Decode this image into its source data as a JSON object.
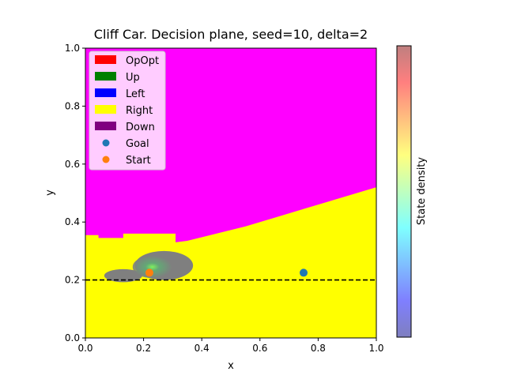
{
  "chart_data": {
    "type": "heatmap",
    "title": "Cliff Car. Decision plane, seed=10, delta=2",
    "xlabel": "x",
    "ylabel": "y",
    "xlim": [
      0.0,
      1.0
    ],
    "ylim": [
      0.0,
      1.0
    ],
    "xticks": [
      "0.0",
      "0.2",
      "0.4",
      "0.6",
      "0.8",
      "1.0"
    ],
    "yticks": [
      "0.0",
      "0.2",
      "0.4",
      "0.6",
      "0.8",
      "1.0"
    ],
    "grid": false,
    "legend_position": "top-left",
    "legend": [
      {
        "label": "OpOpt",
        "color": "#ff0000",
        "kind": "patch"
      },
      {
        "label": "Up",
        "color": "#008000",
        "kind": "patch"
      },
      {
        "label": "Left",
        "color": "#0000ff",
        "kind": "patch"
      },
      {
        "label": "Right",
        "color": "#ffff00",
        "kind": "patch"
      },
      {
        "label": "Down",
        "color": "#800080",
        "kind": "patch"
      },
      {
        "label": "Goal",
        "color": "#1f77b4",
        "kind": "marker"
      },
      {
        "label": "Start",
        "color": "#ff7f0e",
        "kind": "marker"
      }
    ],
    "regions": {
      "upper_color": "#ff00ff",
      "lower_color": "#ffff00",
      "boundary": [
        [
          0.0,
          0.355
        ],
        [
          0.045,
          0.355
        ],
        [
          0.045,
          0.345
        ],
        [
          0.13,
          0.345
        ],
        [
          0.13,
          0.36
        ],
        [
          0.31,
          0.36
        ],
        [
          0.31,
          0.33
        ],
        [
          0.35,
          0.335
        ],
        [
          0.45,
          0.36
        ],
        [
          0.55,
          0.385
        ],
        [
          0.65,
          0.415
        ],
        [
          0.75,
          0.445
        ],
        [
          0.85,
          0.475
        ],
        [
          0.95,
          0.505
        ],
        [
          1.0,
          0.52
        ]
      ]
    },
    "threshold_line": {
      "y": 0.2,
      "style": "dashed",
      "color": "#000000"
    },
    "density_cloud": {
      "center": [
        0.23,
        0.245
      ],
      "x_range": [
        0.07,
        0.37
      ],
      "y_range": [
        0.19,
        0.3
      ]
    },
    "points": [
      {
        "name": "Goal",
        "x": 0.75,
        "y": 0.225,
        "color": "#1f77b4"
      },
      {
        "name": "Start",
        "x": 0.22,
        "y": 0.225,
        "color": "#ff7f0e"
      }
    ],
    "colorbar": {
      "label": "State density",
      "colormap": [
        "#00007f",
        "#0000ff",
        "#007fff",
        "#00ffff",
        "#7fff7f",
        "#ffff00",
        "#ff7f00",
        "#ff0000",
        "#7f0000"
      ],
      "alpha": 0.5
    }
  }
}
